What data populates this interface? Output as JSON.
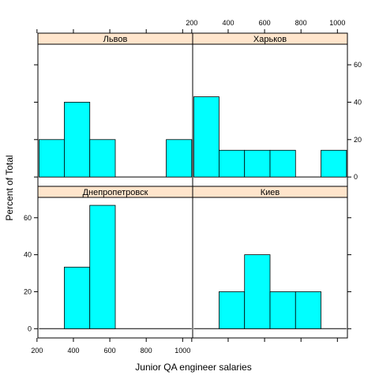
{
  "chart_data": {
    "type": "bar",
    "layout": "lattice 2x2 histograms",
    "xlabel": "Junior QA engineer salaries",
    "ylabel": "Percent of Total",
    "xlim": [
      205,
      1055
    ],
    "ylim": [
      -5,
      71
    ],
    "x_ticks": [
      200,
      400,
      600,
      800,
      1000
    ],
    "y_ticks": [
      0,
      20,
      40,
      60
    ],
    "bin_edges": [
      211,
      350,
      490,
      630,
      770,
      910,
      1050
    ],
    "colors": {
      "bar_fill": "#00FFFF",
      "strip_fill": "#FFE5CC",
      "baseline": "#000000"
    },
    "panels": [
      {
        "name": "Днепропетровск",
        "position": "bottom-left",
        "values": [
          0,
          33.3,
          66.7,
          0,
          0,
          0
        ]
      },
      {
        "name": "Киев",
        "position": "bottom-right",
        "values": [
          0,
          20,
          40,
          20,
          20,
          0
        ]
      },
      {
        "name": "Львов",
        "position": "top-left",
        "values": [
          20,
          40,
          20,
          0,
          0,
          20
        ]
      },
      {
        "name": "Харьков",
        "position": "top-right",
        "values": [
          42.9,
          14.3,
          14.3,
          14.3,
          0,
          14.3
        ]
      }
    ]
  }
}
